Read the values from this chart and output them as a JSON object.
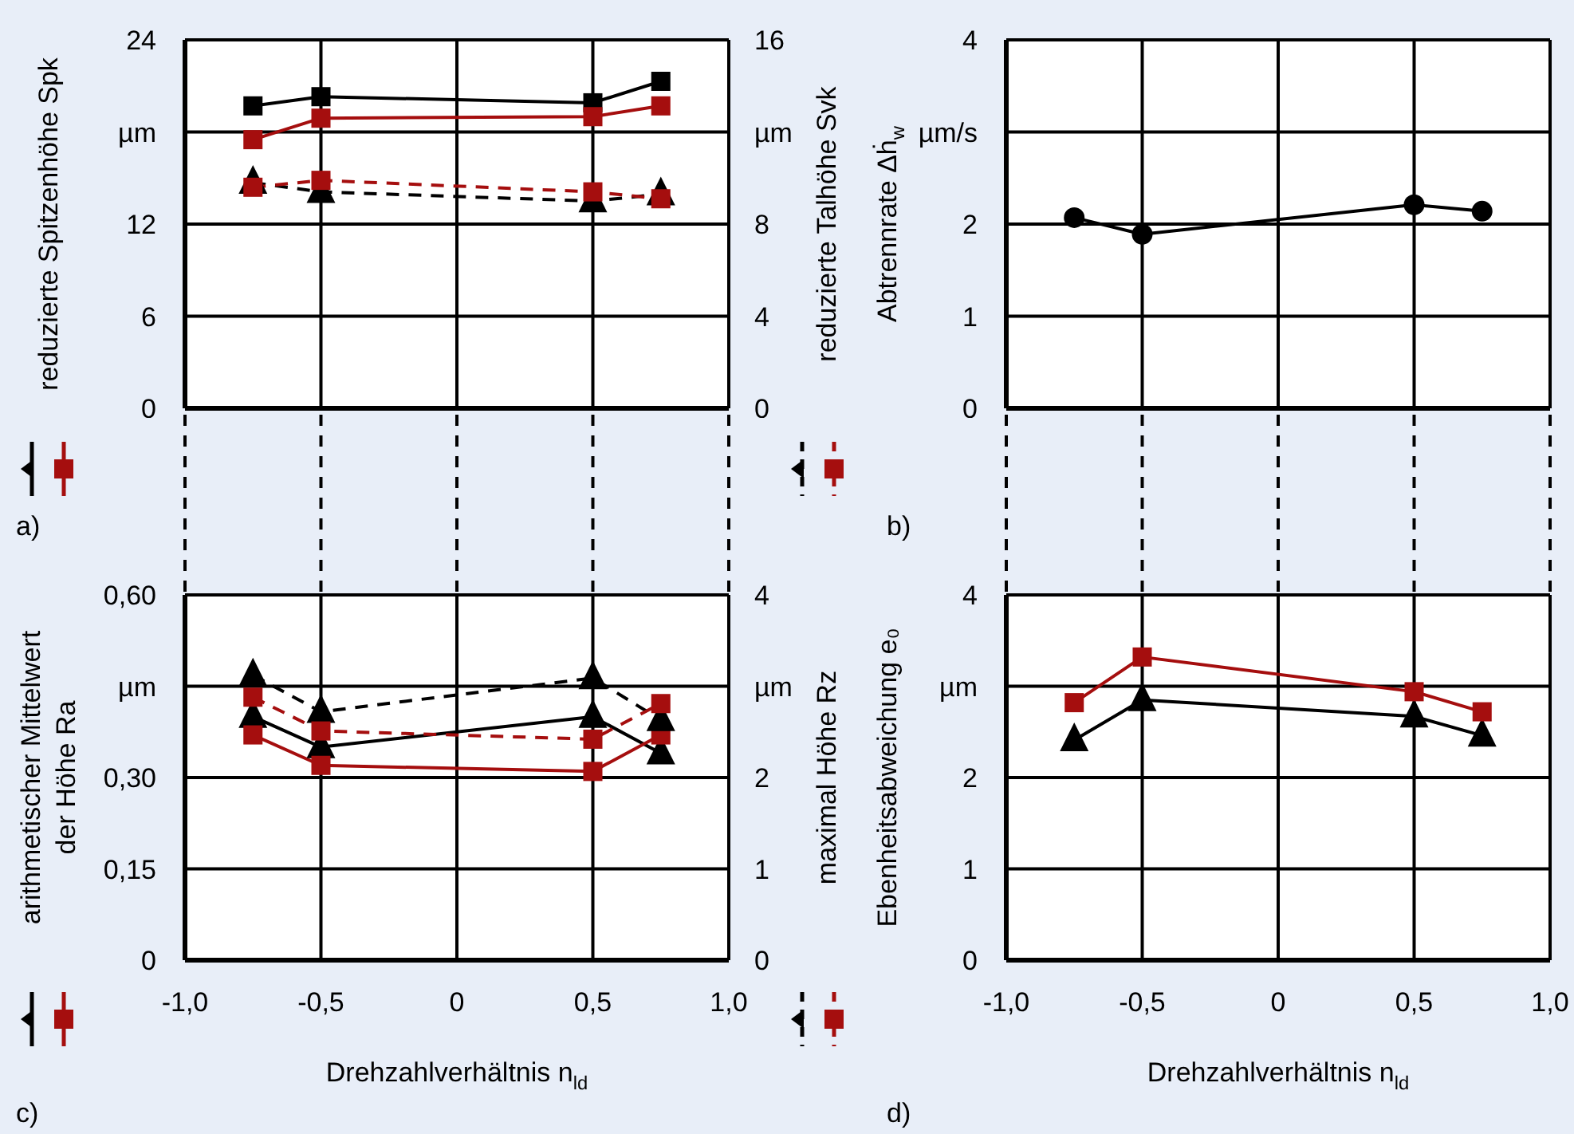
{
  "chart_data": [
    {
      "type": "line",
      "annotations": [
        "a)"
      ],
      "ylabel": "reduzierte Spitzenhöhe Spk",
      "y2label": "reduzierte Talhöhe Svk",
      "x": [
        -0.75,
        -0.5,
        0.5,
        0.75
      ],
      "xlim": [
        -1,
        1
      ],
      "xticks": [
        {
          "value": -1,
          "label": null
        },
        {
          "value": -0.5,
          "label": null
        },
        {
          "value": 0,
          "label": null
        },
        {
          "value": 0.5,
          "label": null
        },
        {
          "value": 1,
          "label": null
        }
      ],
      "ylim": [
        0,
        24
      ],
      "yticks": [
        0,
        6,
        12,
        {
          "value": 18,
          "label": "µm"
        },
        24
      ],
      "y2lim": [
        0,
        16
      ],
      "y2ticks": [
        0,
        4,
        8,
        {
          "value": 12,
          "label": "µm"
        },
        16
      ],
      "grid": true,
      "tick_labels": "y",
      "series": [
        {
          "color": "#000000",
          "marker": "square",
          "line_style": "solid",
          "values": [
            19.7,
            20.3,
            19.9,
            21.3
          ]
        },
        {
          "color": "#a50e0e",
          "marker": "square",
          "line_style": "solid",
          "values": [
            17.5,
            18.9,
            19.0,
            19.7
          ]
        },
        {
          "color": "#000000",
          "marker": "triangle",
          "line_style": "dashed",
          "axis": "y2",
          "values": [
            9.8,
            9.4,
            9.0,
            9.3
          ]
        },
        {
          "color": "#a50e0e",
          "marker": "square",
          "line_style": "dashed",
          "axis": "y2",
          "values": [
            9.6,
            9.9,
            9.4,
            9.1
          ]
        }
      ]
    },
    {
      "type": "line",
      "annotations": [
        "b)"
      ],
      "ylabel": "Abtrennrate Δḣ$_{w}$",
      "x": [
        -0.75,
        -0.5,
        0.5,
        0.75
      ],
      "xlim": [
        -1,
        1
      ],
      "xticks": [
        {
          "value": -1,
          "label": null
        },
        {
          "value": -0.5,
          "label": null
        },
        {
          "value": 0,
          "label": null
        },
        {
          "value": 0.5,
          "label": null
        },
        {
          "value": 1,
          "label": null
        }
      ],
      "ylim": [
        0,
        4
      ],
      "yticks": [
        0,
        1,
        2,
        {
          "value": 3,
          "label": "µm/s"
        },
        4
      ],
      "grid": true,
      "tick_labels": "y",
      "series": [
        {
          "color": "#000000",
          "marker": "circle",
          "line_style": "solid",
          "values": [
            2.07,
            1.89,
            2.21,
            2.14
          ]
        }
      ]
    },
    {
      "type": "line",
      "annotations": [
        "c)"
      ],
      "xlabel": "Drehzahlverhältnis n$_{ld}$",
      "ylabel": "arithmetischer Mittelwert der Höhe Ra",
      "y2label": "maximal Höhe Rz",
      "x": [
        -0.75,
        -0.5,
        0.5,
        0.75
      ],
      "xlim": [
        -1,
        1
      ],
      "xticks": [
        {
          "value": -1,
          "label": "-1,0"
        },
        {
          "value": -0.5,
          "label": "-0,5"
        },
        0,
        {
          "value": 0.5,
          "label": "0,5"
        },
        {
          "value": 1,
          "label": "1,0"
        }
      ],
      "ylim": [
        0,
        0.6
      ],
      "yticks": [
        0,
        {
          "value": 0.15,
          "label": "0,15"
        },
        {
          "value": 0.3,
          "label": "0,30"
        },
        {
          "value": 0.45,
          "label": "µm"
        },
        {
          "value": 0.6,
          "label": "0,60"
        }
      ],
      "y2lim": [
        0,
        4
      ],
      "y2ticks": [
        0,
        1,
        2,
        {
          "value": 3,
          "label": "µm"
        },
        4
      ],
      "grid": true,
      "series": [
        {
          "color": "#000000",
          "marker": "triangle",
          "line_style": "solid",
          "values": [
            0.4,
            0.35,
            0.4,
            0.34
          ]
        },
        {
          "color": "#a50e0e",
          "marker": "square",
          "line_style": "solid",
          "values": [
            0.37,
            0.32,
            0.31,
            0.37
          ]
        },
        {
          "color": "#000000",
          "marker": "triangle",
          "line_style": "dashed",
          "axis": "y2",
          "values": [
            3.12,
            2.72,
            3.09,
            2.63
          ]
        },
        {
          "color": "#a50e0e",
          "marker": "square",
          "line_style": "dashed",
          "axis": "y2",
          "values": [
            2.88,
            2.51,
            2.42,
            2.81
          ]
        }
      ]
    },
    {
      "type": "line",
      "annotations": [
        "d)"
      ],
      "xlabel": "Drehzahlverhältnis n$_{ld}$",
      "ylabel": "Ebenheitsabweichung e₀",
      "x": [
        -0.75,
        -0.5,
        0.5,
        0.75
      ],
      "xlim": [
        -1,
        1
      ],
      "xticks": [
        {
          "value": -1,
          "label": "-1,0"
        },
        {
          "value": -0.5,
          "label": "-0,5"
        },
        0,
        {
          "value": 0.5,
          "label": "0,5"
        },
        {
          "value": 1,
          "label": "1,0"
        }
      ],
      "ylim": [
        0,
        4
      ],
      "yticks": [
        0,
        1,
        2,
        {
          "value": 3,
          "label": "µm"
        },
        4
      ],
      "grid": true,
      "series": [
        {
          "color": "#000000",
          "marker": "triangle",
          "line_style": "solid",
          "values": [
            2.41,
            2.85,
            2.67,
            2.46
          ]
        },
        {
          "color": "#a50e0e",
          "marker": "square",
          "line_style": "solid",
          "values": [
            2.82,
            3.32,
            2.94,
            2.72
          ]
        }
      ]
    }
  ]
}
